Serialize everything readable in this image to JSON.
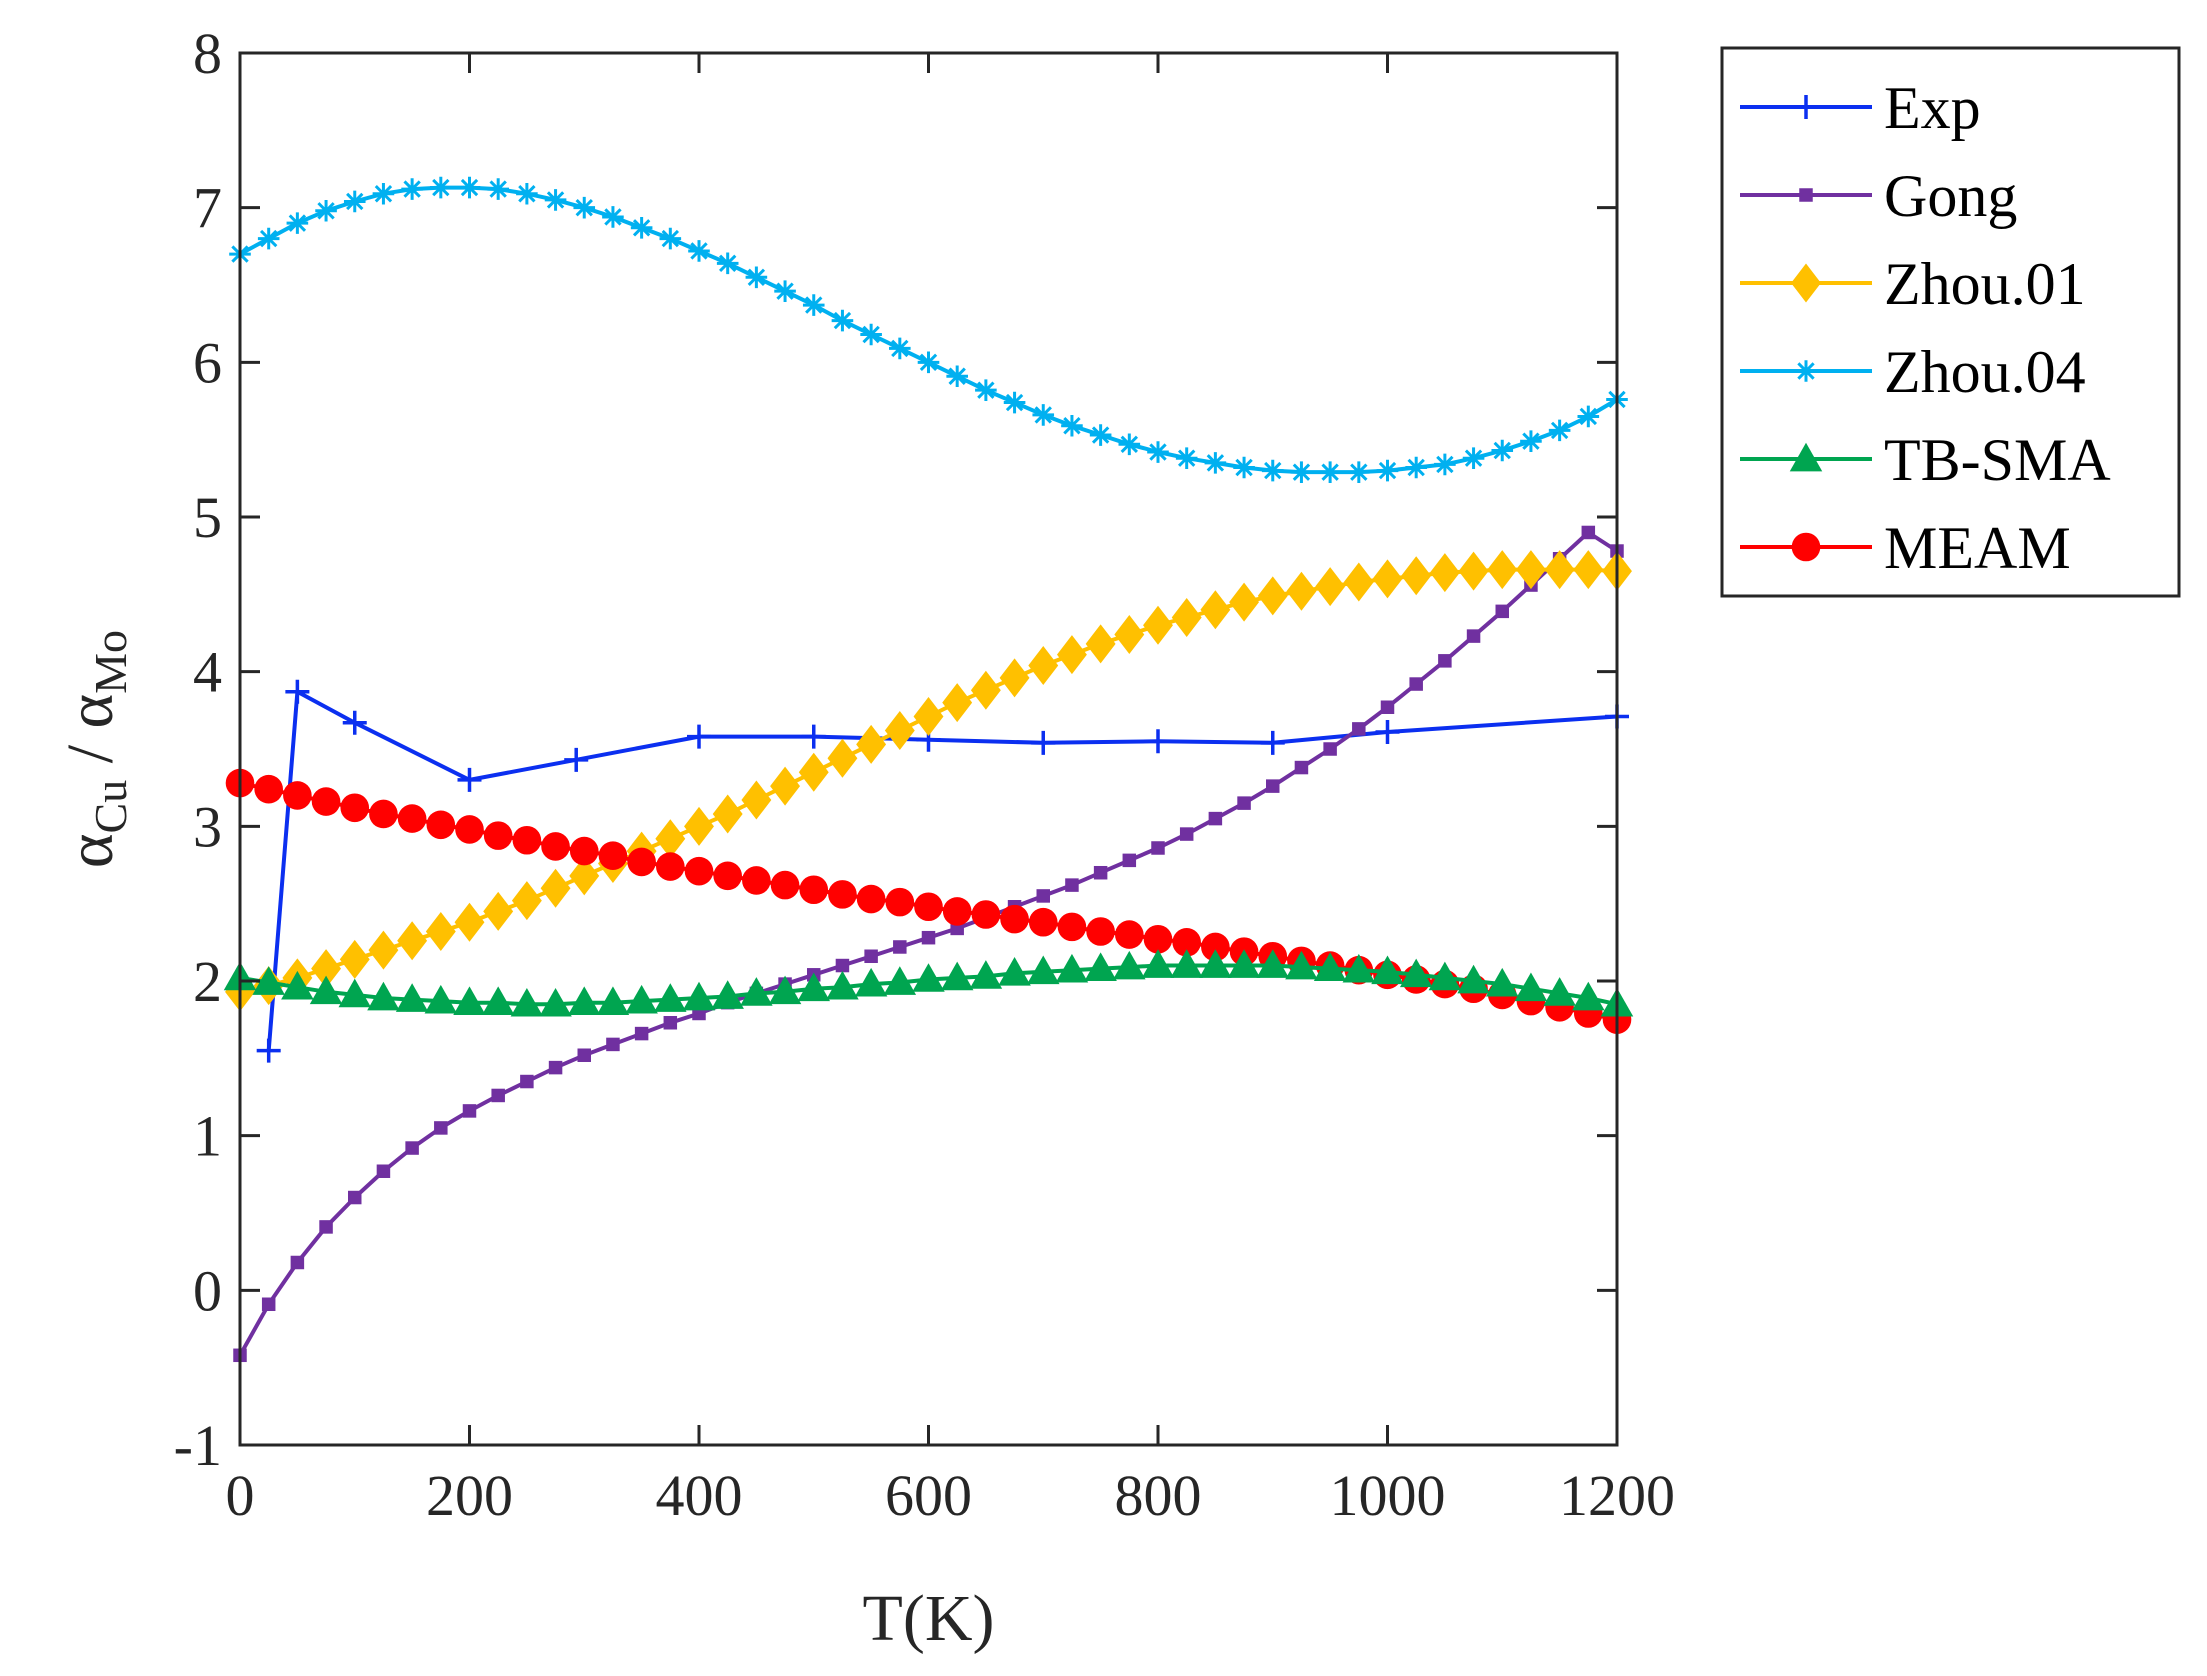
{
  "chart_data": {
    "type": "line",
    "xlabel": "T(K)",
    "ylabel": {
      "alpha1": "α",
      "sub1": "Cu",
      "sep": " / ",
      "alpha2": "α",
      "sub2": "Mo"
    },
    "xlim": [
      0,
      1200
    ],
    "ylim": [
      -1,
      8
    ],
    "xticks": [
      0,
      200,
      400,
      600,
      800,
      1000,
      1200
    ],
    "yticks": [
      -1,
      0,
      1,
      2,
      3,
      4,
      5,
      6,
      7,
      8
    ],
    "grid": false,
    "legend_position": "outside-right-top",
    "series": [
      {
        "name": "Exp",
        "color": "#0b2ff0",
        "marker": "plus",
        "points": [
          [
            25,
            1.55
          ],
          [
            50,
            3.87
          ],
          [
            100,
            3.67
          ],
          [
            200,
            3.3
          ],
          [
            293,
            3.43
          ],
          [
            400,
            3.58
          ],
          [
            500,
            3.58
          ],
          [
            600,
            3.56
          ],
          [
            700,
            3.54
          ],
          [
            800,
            3.55
          ],
          [
            900,
            3.54
          ],
          [
            1000,
            3.61
          ],
          [
            1200,
            3.71
          ]
        ]
      },
      {
        "name": "Gong",
        "color": "#7030a0",
        "marker": "square",
        "x": [
          0,
          25,
          50,
          75,
          100,
          125,
          150,
          175,
          200,
          225,
          250,
          275,
          300,
          325,
          350,
          375,
          400,
          425,
          450,
          475,
          500,
          525,
          550,
          575,
          600,
          625,
          650,
          675,
          700,
          725,
          750,
          775,
          800,
          825,
          850,
          875,
          900,
          925,
          950,
          975,
          1000,
          1025,
          1050,
          1075,
          1100,
          1125,
          1150,
          1175,
          1200
        ],
        "values": [
          -0.42,
          -0.09,
          0.18,
          0.41,
          0.6,
          0.77,
          0.92,
          1.05,
          1.16,
          1.26,
          1.35,
          1.44,
          1.52,
          1.59,
          1.66,
          1.73,
          1.79,
          1.86,
          1.92,
          1.98,
          2.04,
          2.1,
          2.16,
          2.22,
          2.28,
          2.34,
          2.41,
          2.48,
          2.55,
          2.62,
          2.7,
          2.78,
          2.86,
          2.95,
          3.05,
          3.15,
          3.26,
          3.38,
          3.5,
          3.63,
          3.77,
          3.92,
          4.07,
          4.23,
          4.39,
          4.56,
          4.73,
          4.9,
          4.78
        ]
      },
      {
        "name": "Zhou.01",
        "color": "#ffc000",
        "marker": "diamond",
        "x": [
          0,
          25,
          50,
          75,
          100,
          125,
          150,
          175,
          200,
          225,
          250,
          275,
          300,
          325,
          350,
          375,
          400,
          425,
          450,
          475,
          500,
          525,
          550,
          575,
          600,
          625,
          650,
          675,
          700,
          725,
          750,
          775,
          800,
          825,
          850,
          875,
          900,
          925,
          950,
          975,
          1000,
          1025,
          1050,
          1075,
          1100,
          1125,
          1150,
          1175,
          1200
        ],
        "values": [
          1.93,
          1.97,
          2.02,
          2.08,
          2.14,
          2.2,
          2.26,
          2.32,
          2.38,
          2.45,
          2.52,
          2.6,
          2.68,
          2.76,
          2.84,
          2.92,
          3.0,
          3.08,
          3.17,
          3.26,
          3.35,
          3.44,
          3.53,
          3.62,
          3.71,
          3.8,
          3.88,
          3.96,
          4.04,
          4.11,
          4.18,
          4.24,
          4.3,
          4.35,
          4.4,
          4.45,
          4.49,
          4.52,
          4.55,
          4.58,
          4.6,
          4.62,
          4.64,
          4.65,
          4.66,
          4.66,
          4.66,
          4.66,
          4.65
        ]
      },
      {
        "name": "Zhou.04",
        "color": "#00b0f0",
        "marker": "asterisk",
        "x": [
          0,
          25,
          50,
          75,
          100,
          125,
          150,
          175,
          200,
          225,
          250,
          275,
          300,
          325,
          350,
          375,
          400,
          425,
          450,
          475,
          500,
          525,
          550,
          575,
          600,
          625,
          650,
          675,
          700,
          725,
          750,
          775,
          800,
          825,
          850,
          875,
          900,
          925,
          950,
          975,
          1000,
          1025,
          1050,
          1075,
          1100,
          1125,
          1150,
          1175,
          1200
        ],
        "values": [
          6.7,
          6.8,
          6.9,
          6.98,
          7.04,
          7.09,
          7.12,
          7.13,
          7.13,
          7.12,
          7.09,
          7.05,
          7.0,
          6.94,
          6.87,
          6.8,
          6.72,
          6.64,
          6.55,
          6.46,
          6.37,
          6.27,
          6.18,
          6.09,
          6.0,
          5.91,
          5.82,
          5.74,
          5.66,
          5.59,
          5.53,
          5.47,
          5.42,
          5.38,
          5.35,
          5.32,
          5.3,
          5.29,
          5.29,
          5.29,
          5.3,
          5.32,
          5.34,
          5.38,
          5.43,
          5.49,
          5.56,
          5.65,
          5.76
        ]
      },
      {
        "name": "TB-SMA",
        "color": "#00a550",
        "marker": "triangle",
        "x": [
          0,
          25,
          50,
          75,
          100,
          125,
          150,
          175,
          200,
          225,
          250,
          275,
          300,
          325,
          350,
          375,
          400,
          425,
          450,
          475,
          500,
          525,
          550,
          575,
          600,
          625,
          650,
          675,
          700,
          725,
          750,
          775,
          800,
          825,
          850,
          875,
          900,
          925,
          950,
          975,
          1000,
          1025,
          1050,
          1075,
          1100,
          1125,
          1150,
          1175,
          1200
        ],
        "values": [
          2.02,
          1.99,
          1.96,
          1.93,
          1.91,
          1.89,
          1.88,
          1.87,
          1.86,
          1.86,
          1.85,
          1.85,
          1.86,
          1.86,
          1.87,
          1.88,
          1.89,
          1.9,
          1.92,
          1.93,
          1.95,
          1.96,
          1.98,
          1.99,
          2.01,
          2.02,
          2.03,
          2.05,
          2.06,
          2.07,
          2.08,
          2.09,
          2.1,
          2.1,
          2.1,
          2.1,
          2.1,
          2.09,
          2.08,
          2.07,
          2.06,
          2.04,
          2.02,
          2.0,
          1.98,
          1.95,
          1.92,
          1.89,
          1.85
        ]
      },
      {
        "name": "MEAM",
        "color": "#ff0000",
        "marker": "circle",
        "x": [
          0,
          25,
          50,
          75,
          100,
          125,
          150,
          175,
          200,
          225,
          250,
          275,
          300,
          325,
          350,
          375,
          400,
          425,
          450,
          475,
          500,
          525,
          550,
          575,
          600,
          625,
          650,
          675,
          700,
          725,
          750,
          775,
          800,
          825,
          850,
          875,
          900,
          925,
          950,
          975,
          1000,
          1025,
          1050,
          1075,
          1100,
          1125,
          1150,
          1175,
          1200
        ],
        "values": [
          3.28,
          3.24,
          3.2,
          3.16,
          3.12,
          3.08,
          3.05,
          3.01,
          2.98,
          2.94,
          2.91,
          2.87,
          2.84,
          2.81,
          2.77,
          2.74,
          2.71,
          2.68,
          2.65,
          2.62,
          2.59,
          2.56,
          2.53,
          2.51,
          2.48,
          2.45,
          2.43,
          2.4,
          2.38,
          2.35,
          2.32,
          2.3,
          2.27,
          2.25,
          2.22,
          2.19,
          2.16,
          2.13,
          2.1,
          2.07,
          2.04,
          2.01,
          1.98,
          1.95,
          1.91,
          1.87,
          1.83,
          1.79,
          1.75
        ]
      }
    ]
  }
}
